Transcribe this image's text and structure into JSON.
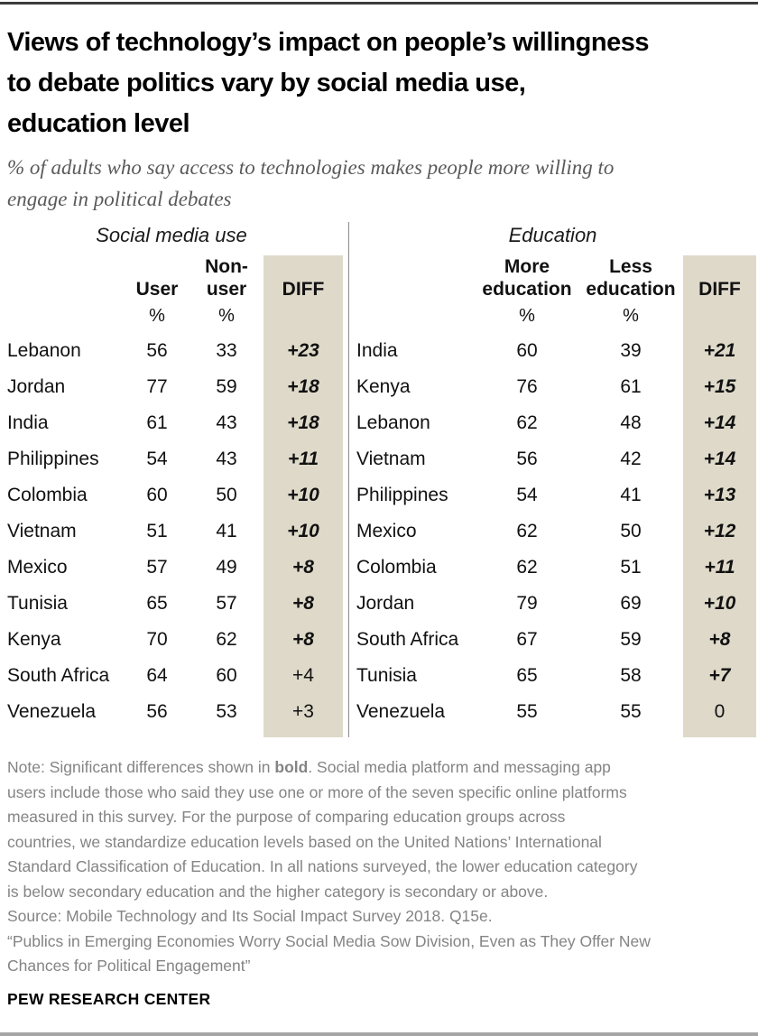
{
  "title": {
    "lines": [
      "Views of technology’s impact on people’s willingness",
      "to debate politics vary by social media use,",
      "education level"
    ]
  },
  "subtitle": {
    "lines": [
      "% of adults who say access to technologies makes people more willing to",
      "engage in political debates"
    ]
  },
  "chart_data": [
    {
      "type": "table",
      "group_label": "Social media use",
      "columns": [
        "User",
        "Non-user",
        "DIFF"
      ],
      "unit": "%",
      "rows": [
        {
          "country": "Lebanon",
          "v1": "56",
          "v2": "33",
          "diff": "+23",
          "sig": true
        },
        {
          "country": "Jordan",
          "v1": "77",
          "v2": "59",
          "diff": "+18",
          "sig": true
        },
        {
          "country": "India",
          "v1": "61",
          "v2": "43",
          "diff": "+18",
          "sig": true
        },
        {
          "country": "Philippines",
          "v1": "54",
          "v2": "43",
          "diff": "+11",
          "sig": true
        },
        {
          "country": "Colombia",
          "v1": "60",
          "v2": "50",
          "diff": "+10",
          "sig": true
        },
        {
          "country": "Vietnam",
          "v1": "51",
          "v2": "41",
          "diff": "+10",
          "sig": true
        },
        {
          "country": "Mexico",
          "v1": "57",
          "v2": "49",
          "diff": "+8",
          "sig": true
        },
        {
          "country": "Tunisia",
          "v1": "65",
          "v2": "57",
          "diff": "+8",
          "sig": true
        },
        {
          "country": "Kenya",
          "v1": "70",
          "v2": "62",
          "diff": "+8",
          "sig": true
        },
        {
          "country": "South Africa",
          "v1": "64",
          "v2": "60",
          "diff": "+4",
          "sig": false
        },
        {
          "country": "Venezuela",
          "v1": "56",
          "v2": "53",
          "diff": "+3",
          "sig": false
        }
      ]
    },
    {
      "type": "table",
      "group_label": "Education",
      "columns": [
        "More education",
        "Less education",
        "DIFF"
      ],
      "unit": "%",
      "rows": [
        {
          "country": "India",
          "v1": "60",
          "v2": "39",
          "diff": "+21",
          "sig": true
        },
        {
          "country": "Kenya",
          "v1": "76",
          "v2": "61",
          "diff": "+15",
          "sig": true
        },
        {
          "country": "Lebanon",
          "v1": "62",
          "v2": "48",
          "diff": "+14",
          "sig": true
        },
        {
          "country": "Vietnam",
          "v1": "56",
          "v2": "42",
          "diff": "+14",
          "sig": true
        },
        {
          "country": "Philippines",
          "v1": "54",
          "v2": "41",
          "diff": "+13",
          "sig": true
        },
        {
          "country": "Mexico",
          "v1": "62",
          "v2": "50",
          "diff": "+12",
          "sig": true
        },
        {
          "country": "Colombia",
          "v1": "62",
          "v2": "51",
          "diff": "+11",
          "sig": true
        },
        {
          "country": "Jordan",
          "v1": "79",
          "v2": "69",
          "diff": "+10",
          "sig": true
        },
        {
          "country": "South Africa",
          "v1": "67",
          "v2": "59",
          "diff": "+8",
          "sig": true
        },
        {
          "country": "Tunisia",
          "v1": "65",
          "v2": "58",
          "diff": "+7",
          "sig": true
        },
        {
          "country": "Venezuela",
          "v1": "55",
          "v2": "55",
          "diff": "0",
          "sig": false
        }
      ]
    }
  ],
  "notes": {
    "line1_pre": "Note: Significant differences shown in ",
    "line1_bold": "bold",
    "line1_post": ". Social media platform and messaging app",
    "lines": [
      "users include those who said they use one or more of the seven specific online platforms",
      "measured in this survey. For the purpose of comparing education groups across",
      "countries, we standardize education levels based on the United Nations’ International",
      "Standard Classification of Education. In all nations surveyed, the lower education category",
      "is below secondary education and the higher category is secondary or above.",
      "Source: Mobile Technology and Its Social Impact Survey 2018. Q15e.",
      "“Publics in Emerging Economies Worry Social Media Sow Division, Even as They Offer New",
      "Chances for Political Engagement”"
    ]
  },
  "footer": {
    "brand": "PEW RESEARCH CENTER"
  },
  "colors": {
    "diff_column_bg": "#ded9c9",
    "top_rule": "#3d3d3d",
    "bottom_rule": "#a5a5a5",
    "note_text": "#848484"
  }
}
